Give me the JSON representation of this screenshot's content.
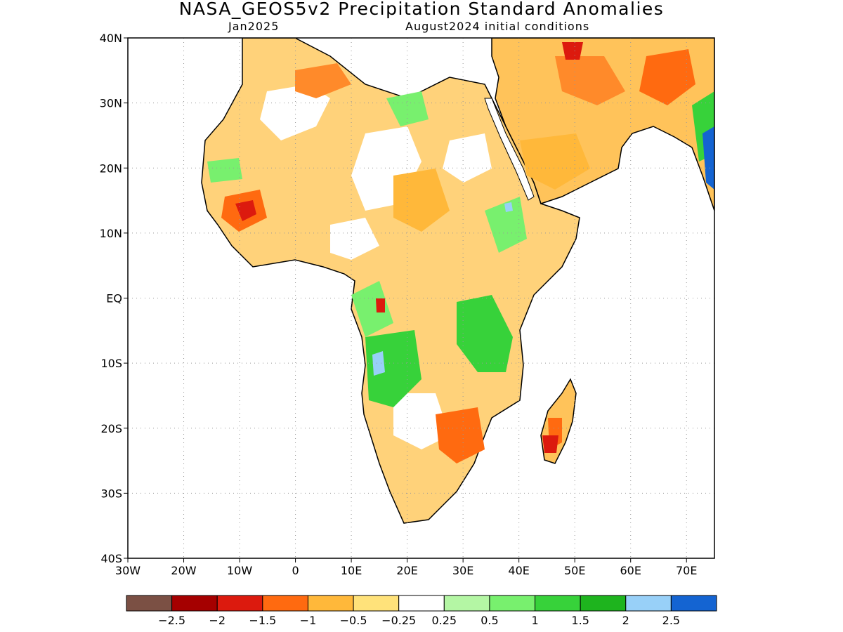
{
  "title": "NASA_GEOS5v2 Precipitation Standard Anomalies",
  "subtitle_left": "Jan2025",
  "subtitle_right": "August2024 initial conditions",
  "map": {
    "lon_range": [
      -30,
      75
    ],
    "lat_range": [
      -40,
      40
    ],
    "lat_ticks": [
      "40N",
      "30N",
      "20N",
      "10N",
      "EQ",
      "10S",
      "20S",
      "30S",
      "40S"
    ],
    "lon_ticks": [
      "30W",
      "20W",
      "10W",
      "0",
      "10E",
      "20E",
      "30E",
      "40E",
      "50E",
      "60E",
      "70E"
    ],
    "grid": true
  },
  "colorbar": {
    "colors": [
      "#7b5044",
      "#a50000",
      "#dc1a0e",
      "#ff6a10",
      "#ffb83a",
      "#ffe27a",
      "#ffffff",
      "#b4f6a4",
      "#78f06e",
      "#37d23a",
      "#1eb41e",
      "#98d0f8",
      "#1464d2"
    ],
    "labels": [
      "-2.5",
      "-2",
      "-1.5",
      "-1",
      "-0.5",
      "-0.25",
      "0.25",
      "0.5",
      "1",
      "1.5",
      "2",
      "2.5"
    ]
  }
}
